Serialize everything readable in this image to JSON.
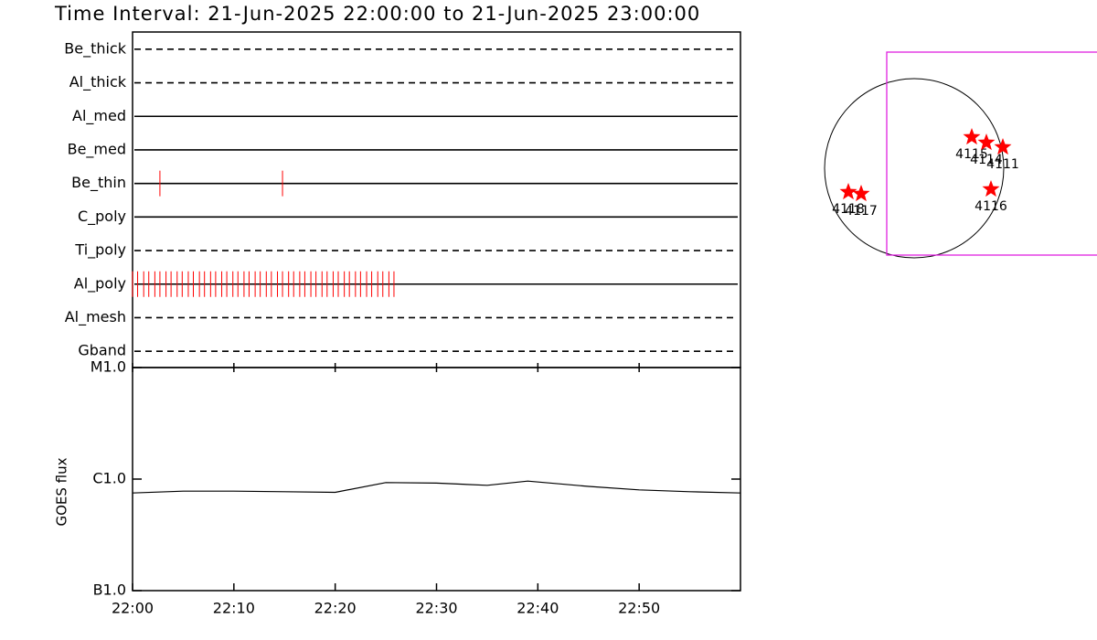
{
  "title": "Time Interval: 21-Jun-2025 22:00:00 to 21-Jun-2025 23:00:00",
  "chart_data": [
    {
      "type": "timeline",
      "xlim": [
        0,
        60
      ],
      "event_color": "#ff0000",
      "rows": [
        {
          "name": "Be_thick",
          "line_style": "dashed",
          "events": []
        },
        {
          "name": "Al_thick",
          "line_style": "dashed",
          "events": []
        },
        {
          "name": "Al_med",
          "line_style": "solid",
          "events": []
        },
        {
          "name": "Be_med",
          "line_style": "solid",
          "events": []
        },
        {
          "name": "Be_thin",
          "line_style": "solid",
          "events": [
            2.7,
            14.8
          ]
        },
        {
          "name": "C_poly",
          "line_style": "solid",
          "events": []
        },
        {
          "name": "Ti_poly",
          "line_style": "dashed",
          "events": []
        },
        {
          "name": "Al_poly",
          "line_style": "solid",
          "events": [
            0,
            0.5,
            1.1,
            1.6,
            2.2,
            2.7,
            3.3,
            3.8,
            4.4,
            4.9,
            5.5,
            6.0,
            6.6,
            7.1,
            7.7,
            8.2,
            8.8,
            9.3,
            9.9,
            10.4,
            11.0,
            11.5,
            12.1,
            12.6,
            13.2,
            13.7,
            14.3,
            14.8,
            15.4,
            15.9,
            16.5,
            17.0,
            17.6,
            18.1,
            18.7,
            19.2,
            19.8,
            20.3,
            20.9,
            21.4,
            22.0,
            22.5,
            23.1,
            23.6,
            24.2,
            24.7,
            25.3,
            25.8
          ]
        },
        {
          "name": "Al_mesh",
          "line_style": "dashed",
          "events": []
        },
        {
          "name": "Gband",
          "line_style": "dashed",
          "events": []
        }
      ]
    },
    {
      "type": "line",
      "ylabel": "GOES flux",
      "log_y": true,
      "color": "#000000",
      "xlim": [
        0,
        60
      ],
      "ylim": [
        1e-07,
        1e-05
      ],
      "xticks": [
        {
          "value": 0,
          "label": "22:00"
        },
        {
          "value": 10,
          "label": "22:10"
        },
        {
          "value": 20,
          "label": "22:20"
        },
        {
          "value": 30,
          "label": "22:30"
        },
        {
          "value": 40,
          "label": "22:40"
        },
        {
          "value": 50,
          "label": "22:50"
        }
      ],
      "yticks": [
        {
          "value": 1e-07,
          "label": "B1.0"
        },
        {
          "value": 1e-06,
          "label": "C1.0"
        },
        {
          "value": 1e-05,
          "label": "M1.0"
        }
      ],
      "x": [
        0,
        5,
        10,
        15,
        20,
        25,
        30,
        35,
        39,
        45,
        50,
        55,
        60
      ],
      "values": [
        7.5e-07,
        7.8e-07,
        7.8e-07,
        7.7e-07,
        7.6e-07,
        9.3e-07,
        9.2e-07,
        8.8e-07,
        9.6e-07,
        8.6e-07,
        8e-07,
        7.7e-07,
        7.5e-07
      ]
    },
    {
      "type": "scatter",
      "color": "#ff0000",
      "xlim": [
        -1200,
        2000
      ],
      "ylim": [
        -1600,
        1600
      ],
      "labels": [
        "4115",
        "4114",
        "4111",
        "4116",
        "4118",
        "4117"
      ],
      "x": [
        630,
        790,
        970,
        840,
        -720,
        -580
      ],
      "values": [
        340,
        280,
        230,
        -230,
        -260,
        -280
      ]
    }
  ]
}
